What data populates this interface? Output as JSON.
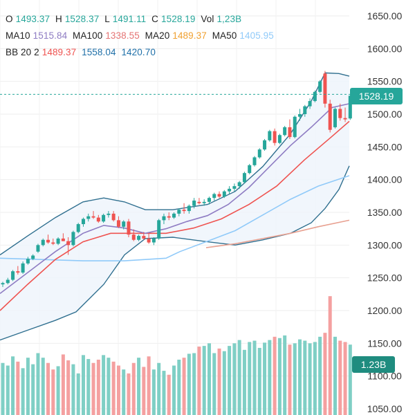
{
  "legend": {
    "row1": [
      {
        "label": "O",
        "value": "1493.37"
      },
      {
        "label": "H",
        "value": "1528.37"
      },
      {
        "label": "L",
        "value": "1491.11"
      },
      {
        "label": "C",
        "value": "1528.19"
      },
      {
        "label": "Vol",
        "value": "1,23B"
      }
    ],
    "row2": [
      {
        "label": "MA10",
        "value": "1515.84"
      },
      {
        "label": "MA100",
        "value": "1338.55"
      },
      {
        "label": "MA20",
        "value": "1489.37"
      },
      {
        "label": "MA50",
        "value": "1405.95"
      }
    ],
    "row3": {
      "label": "BB 20 2",
      "values": [
        "1489.37",
        "1558.04",
        "1420.70"
      ]
    }
  },
  "colors": {
    "up": "#26a69a",
    "down": "#ef5350",
    "ma10": "#8e7cc3",
    "ma20": "#ef5350",
    "ma50": "#90caf9",
    "ma100": "#e8a090",
    "bb": "#2f6f8f",
    "row1_value": "#26a69a",
    "row2_ma10": "#8e7cc3",
    "row2_ma100": "#e57373",
    "row2_ma20": "#f0a030",
    "row2_ma50": "#90caf9",
    "row3_values": [
      "#ef5350",
      "#1e6fa8",
      "#1e6fa8"
    ]
  },
  "price_badge": "1528.19",
  "volume_badge": "1.23B",
  "chart_data": {
    "type": "candlestick",
    "y_ticks": [
      "1650.00",
      "1600.00",
      "1550.00",
      "1500.00",
      "1450.00",
      "1400.00",
      "1350.00",
      "1300.00",
      "1250.00",
      "1200.00",
      "1150.00",
      "1100.00",
      "1050.00"
    ],
    "ylim": [
      1045,
      1660
    ],
    "last_price": 1528.19,
    "candles": [
      [
        1240,
        1244,
        1236,
        1242
      ],
      [
        1242,
        1250,
        1240,
        1247
      ],
      [
        1247,
        1262,
        1245,
        1260
      ],
      [
        1260,
        1268,
        1255,
        1258
      ],
      [
        1258,
        1275,
        1256,
        1272
      ],
      [
        1272,
        1282,
        1270,
        1279
      ],
      [
        1279,
        1286,
        1277,
        1284
      ],
      [
        1290,
        1302,
        1288,
        1300
      ],
      [
        1300,
        1310,
        1298,
        1308
      ],
      [
        1308,
        1316,
        1302,
        1304
      ],
      [
        1304,
        1310,
        1300,
        1302
      ],
      [
        1302,
        1312,
        1300,
        1310
      ],
      [
        1310,
        1318,
        1306,
        1306
      ],
      [
        1306,
        1312,
        1285,
        1300
      ],
      [
        1300,
        1322,
        1298,
        1320
      ],
      [
        1320,
        1334,
        1318,
        1332
      ],
      [
        1332,
        1342,
        1328,
        1340
      ],
      [
        1340,
        1348,
        1336,
        1344
      ],
      [
        1344,
        1352,
        1340,
        1342
      ],
      [
        1342,
        1346,
        1334,
        1336
      ],
      [
        1336,
        1348,
        1334,
        1346
      ],
      [
        1346,
        1352,
        1342,
        1348
      ],
      [
        1348,
        1352,
        1336,
        1338
      ],
      [
        1338,
        1344,
        1326,
        1328
      ],
      [
        1328,
        1338,
        1324,
        1336
      ],
      [
        1336,
        1340,
        1312,
        1316
      ],
      [
        1316,
        1324,
        1306,
        1308
      ],
      [
        1308,
        1316,
        1306,
        1314
      ],
      [
        1314,
        1320,
        1308,
        1310
      ],
      [
        1310,
        1318,
        1302,
        1304
      ],
      [
        1304,
        1312,
        1300,
        1310
      ],
      [
        1310,
        1340,
        1308,
        1338
      ],
      [
        1338,
        1348,
        1332,
        1344
      ],
      [
        1344,
        1350,
        1338,
        1342
      ],
      [
        1342,
        1350,
        1340,
        1348
      ],
      [
        1348,
        1356,
        1344,
        1354
      ],
      [
        1354,
        1364,
        1348,
        1352
      ],
      [
        1352,
        1362,
        1348,
        1360
      ],
      [
        1360,
        1372,
        1356,
        1368
      ],
      [
        1366,
        1372,
        1362,
        1364
      ],
      [
        1364,
        1370,
        1360,
        1366
      ],
      [
        1366,
        1374,
        1362,
        1372
      ],
      [
        1372,
        1380,
        1368,
        1378
      ],
      [
        1378,
        1382,
        1372,
        1374
      ],
      [
        1374,
        1384,
        1372,
        1382
      ],
      [
        1382,
        1390,
        1378,
        1386
      ],
      [
        1386,
        1394,
        1382,
        1390
      ],
      [
        1390,
        1398,
        1386,
        1396
      ],
      [
        1396,
        1412,
        1394,
        1410
      ],
      [
        1410,
        1424,
        1408,
        1422
      ],
      [
        1422,
        1436,
        1420,
        1434
      ],
      [
        1434,
        1448,
        1432,
        1446
      ],
      [
        1446,
        1462,
        1444,
        1460
      ],
      [
        1460,
        1476,
        1458,
        1474
      ],
      [
        1474,
        1478,
        1452,
        1456
      ],
      [
        1456,
        1470,
        1454,
        1468
      ],
      [
        1468,
        1482,
        1466,
        1480
      ],
      [
        1480,
        1492,
        1462,
        1465
      ],
      [
        1465,
        1498,
        1463,
        1496
      ],
      [
        1496,
        1508,
        1490,
        1500
      ],
      [
        1500,
        1514,
        1496,
        1512
      ],
      [
        1512,
        1524,
        1508,
        1520
      ],
      [
        1520,
        1536,
        1518,
        1534
      ],
      [
        1534,
        1552,
        1532,
        1550
      ],
      [
        1562,
        1566,
        1510,
        1516
      ],
      [
        1516,
        1522,
        1472,
        1476
      ],
      [
        1480,
        1510,
        1478,
        1508
      ],
      [
        1508,
        1516,
        1490,
        1494
      ],
      [
        1494,
        1510,
        1488,
        1492
      ],
      [
        1493.37,
        1528.37,
        1491.11,
        1528.19
      ]
    ],
    "volumes": [
      1120,
      1116,
      1130,
      1122,
      1112,
      1128,
      1118,
      1135,
      1128,
      1120,
      1110,
      1115,
      1133,
      1124,
      1118,
      1104,
      1132,
      1126,
      1120,
      1125,
      1132,
      1128,
      1122,
      1116,
      1110,
      1104,
      1120,
      1128,
      1114,
      1130,
      1110,
      1120,
      1108,
      1102,
      1116,
      1125,
      1128,
      1134,
      1135,
      1145,
      1146,
      1150,
      1135,
      1142,
      1138,
      1146,
      1150,
      1155,
      1140,
      1152,
      1154,
      1143,
      1151,
      1155,
      1160,
      1158,
      1162,
      1148,
      1150,
      1156,
      1154,
      1150,
      1152,
      1160,
      1166,
      1222,
      1160,
      1154,
      1152,
      1148
    ],
    "ma10": [
      [
        0,
        1226
      ],
      [
        40,
        1258
      ],
      [
        80,
        1290
      ],
      [
        120,
        1318
      ],
      [
        150,
        1330
      ],
      [
        180,
        1326
      ],
      [
        210,
        1318
      ],
      [
        240,
        1325
      ],
      [
        270,
        1336
      ],
      [
        300,
        1345
      ],
      [
        330,
        1362
      ],
      [
        360,
        1388
      ],
      [
        390,
        1420
      ],
      [
        420,
        1452
      ],
      [
        450,
        1480
      ],
      [
        480,
        1510
      ],
      [
        505,
        1516
      ]
    ],
    "ma20": [
      [
        0,
        1200
      ],
      [
        40,
        1240
      ],
      [
        80,
        1278
      ],
      [
        120,
        1305
      ],
      [
        160,
        1318
      ],
      [
        200,
        1318
      ],
      [
        240,
        1318
      ],
      [
        280,
        1326
      ],
      [
        320,
        1340
      ],
      [
        360,
        1362
      ],
      [
        400,
        1390
      ],
      [
        440,
        1430
      ],
      [
        480,
        1466
      ],
      [
        505,
        1489
      ]
    ],
    "ma50": [
      [
        0,
        1280
      ],
      [
        60,
        1278
      ],
      [
        120,
        1276
      ],
      [
        180,
        1276
      ],
      [
        240,
        1280
      ],
      [
        260,
        1290
      ],
      [
        300,
        1306
      ],
      [
        340,
        1322
      ],
      [
        380,
        1346
      ],
      [
        420,
        1370
      ],
      [
        460,
        1390
      ],
      [
        505,
        1406
      ]
    ],
    "ma100": [
      [
        298,
        1296
      ],
      [
        340,
        1302
      ],
      [
        380,
        1310
      ],
      [
        420,
        1318
      ],
      [
        460,
        1328
      ],
      [
        505,
        1338
      ]
    ],
    "bb_upper": [
      [
        0,
        1285
      ],
      [
        40,
        1314
      ],
      [
        80,
        1342
      ],
      [
        120,
        1366
      ],
      [
        150,
        1372
      ],
      [
        180,
        1366
      ],
      [
        210,
        1354
      ],
      [
        250,
        1354
      ],
      [
        300,
        1362
      ],
      [
        340,
        1382
      ],
      [
        380,
        1420
      ],
      [
        420,
        1470
      ],
      [
        450,
        1520
      ],
      [
        470,
        1563
      ],
      [
        490,
        1562
      ],
      [
        505,
        1558
      ]
    ],
    "bb_lower": [
      [
        0,
        1155
      ],
      [
        40,
        1170
      ],
      [
        80,
        1185
      ],
      [
        110,
        1198
      ],
      [
        150,
        1240
      ],
      [
        180,
        1285
      ],
      [
        210,
        1310
      ],
      [
        250,
        1312
      ],
      [
        300,
        1305
      ],
      [
        340,
        1300
      ],
      [
        380,
        1308
      ],
      [
        420,
        1318
      ],
      [
        450,
        1334
      ],
      [
        470,
        1356
      ],
      [
        490,
        1385
      ],
      [
        505,
        1421
      ]
    ]
  }
}
